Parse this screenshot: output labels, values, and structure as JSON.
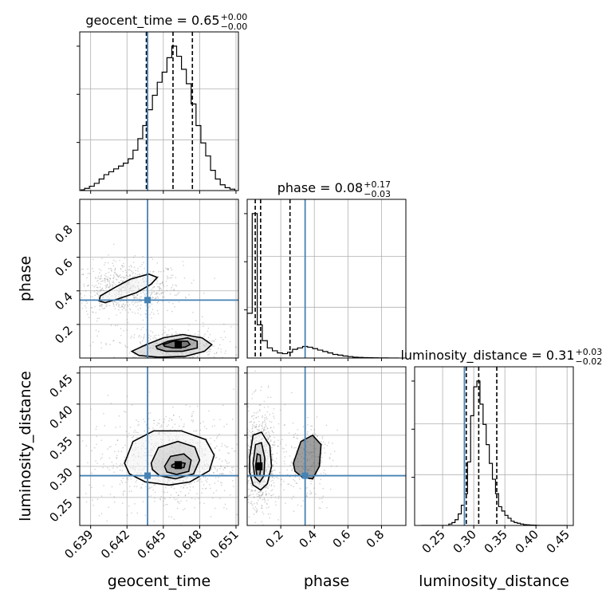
{
  "chart_data": {
    "type": "corner",
    "parameters": [
      "geocent_time",
      "phase",
      "luminosity_distance"
    ],
    "ranges": {
      "geocent_time": [
        0.6381,
        0.6512
      ],
      "phase": [
        0.0,
        0.945
      ],
      "luminosity_distance": [
        0.205,
        0.46
      ]
    },
    "ticks": {
      "geocent_time": [
        "0.639",
        "0.642",
        "0.645",
        "0.648",
        "0.651"
      ],
      "phase": [
        "0.2",
        "0.4",
        "0.6",
        "0.8"
      ],
      "luminosity_distance": [
        "0.25",
        "0.30",
        "0.35",
        "0.40",
        "0.45"
      ]
    },
    "ticks_left": {
      "phase": [
        "0.2",
        "0.4",
        "0.6",
        "0.8"
      ],
      "luminosity_distance": [
        "0.25",
        "0.30",
        "0.35",
        "0.40",
        "0.45"
      ]
    },
    "truths": {
      "geocent_time": 0.6437,
      "phase": 0.345,
      "luminosity_distance": 0.285
    },
    "titles": [
      {
        "name": "geocent_time",
        "value": "0.65",
        "plus": "+0.00",
        "minus": "−0.00"
      },
      {
        "name": "phase",
        "value": "0.08",
        "plus": "+0.17",
        "minus": "−0.03"
      },
      {
        "name": "luminosity_distance",
        "value": "0.31",
        "plus": "+0.03",
        "minus": "−0.02"
      }
    ],
    "quantiles": {
      "geocent_time": [
        0.6436,
        0.6458,
        0.6474
      ],
      "phase": [
        0.048,
        0.08,
        0.255
      ],
      "luminosity_distance": [
        0.288,
        0.308,
        0.337
      ]
    },
    "hist_1d": {
      "geocent_time": {
        "edges": [
          0.6382,
          0.6385,
          0.6389,
          0.6393,
          0.6397,
          0.6401,
          0.6405,
          0.6409,
          0.6413,
          0.6417,
          0.6421,
          0.6425,
          0.6429,
          0.6433,
          0.6437,
          0.6441,
          0.6445,
          0.6449,
          0.6453,
          0.6457,
          0.6461,
          0.6465,
          0.6469,
          0.6473,
          0.6477,
          0.6481,
          0.6485,
          0.6489,
          0.6493,
          0.6497,
          0.6501,
          0.6505,
          0.6509
        ],
        "counts": [
          0.5,
          1.5,
          3,
          5,
          8,
          11,
          13,
          15,
          17,
          19,
          22,
          28,
          36,
          45,
          56,
          66,
          75,
          82,
          92,
          100,
          93,
          84,
          74,
          60,
          45,
          33,
          24,
          14,
          8,
          4,
          2,
          1
        ]
      },
      "phase": {
        "edges": [
          0.0,
          0.03,
          0.06,
          0.09,
          0.12,
          0.15,
          0.18,
          0.21,
          0.24,
          0.27,
          0.3,
          0.33,
          0.36,
          0.39,
          0.42,
          0.45,
          0.48,
          0.51,
          0.54,
          0.57,
          0.6,
          0.63,
          0.66,
          0.69,
          0.72,
          0.75,
          0.78,
          0.81,
          0.84,
          0.87,
          0.9
        ],
        "counts": [
          31,
          100,
          23,
          12,
          7,
          5,
          3.5,
          3,
          4,
          6,
          7,
          8,
          7.5,
          6.5,
          5.5,
          4.5,
          3.5,
          2.5,
          2,
          1.4,
          1,
          0.6,
          0.4,
          0.3,
          0.2,
          0.15,
          0.1,
          0.06,
          0.03,
          0.01
        ]
      },
      "luminosity_distance": {
        "edges": [
          0.215,
          0.22,
          0.225,
          0.23,
          0.235,
          0.24,
          0.245,
          0.25,
          0.255,
          0.26,
          0.265,
          0.27,
          0.275,
          0.28,
          0.285,
          0.29,
          0.295,
          0.3,
          0.305,
          0.31,
          0.315,
          0.32,
          0.325,
          0.33,
          0.335,
          0.34,
          0.345,
          0.35,
          0.355,
          0.36,
          0.365,
          0.37,
          0.375,
          0.38,
          0.385,
          0.39,
          0.395,
          0.4,
          0.405,
          0.41,
          0.415,
          0.42,
          0.425,
          0.43,
          0.435,
          0.44,
          0.445,
          0.45
        ],
        "counts": [
          0,
          0,
          0,
          0,
          0,
          0,
          0,
          0,
          0,
          1,
          2,
          4,
          8,
          14,
          22,
          44,
          76,
          96,
          100,
          84,
          70,
          56,
          43,
          32,
          22,
          13,
          10,
          7,
          5,
          3,
          2,
          1.5,
          1,
          0.6,
          0.4,
          0.3,
          0.2,
          0.1,
          0,
          0,
          0,
          0,
          0,
          0,
          0,
          0,
          0
        ]
      }
    },
    "contours_2d": [
      {
        "x": "geocent_time",
        "y": "phase",
        "levels": [
          [
            [
              0.6398,
              0.37
            ],
            [
              0.641,
              0.42
            ],
            [
              0.6423,
              0.47
            ],
            [
              0.6438,
              0.5
            ],
            [
              0.6445,
              0.48
            ],
            [
              0.644,
              0.44
            ],
            [
              0.6428,
              0.39
            ],
            [
              0.6412,
              0.35
            ],
            [
              0.6402,
              0.33
            ],
            [
              0.6397,
              0.34
            ]
          ],
          [
            [
              0.6424,
              0.04
            ],
            [
              0.6436,
              0.08
            ],
            [
              0.645,
              0.12
            ],
            [
              0.6466,
              0.14
            ],
            [
              0.6482,
              0.12
            ],
            [
              0.649,
              0.08
            ],
            [
              0.6484,
              0.04
            ],
            [
              0.6468,
              0.01
            ],
            [
              0.6446,
              0.005
            ],
            [
              0.643,
              0.015
            ]
          ],
          [
            [
              0.6444,
              0.07
            ],
            [
              0.6454,
              0.1
            ],
            [
              0.647,
              0.12
            ],
            [
              0.6478,
              0.1
            ],
            [
              0.6478,
              0.06
            ],
            [
              0.6466,
              0.04
            ],
            [
              0.6452,
              0.04
            ],
            [
              0.6445,
              0.055
            ]
          ],
          [
            [
              0.645,
              0.08
            ],
            [
              0.6458,
              0.1
            ],
            [
              0.647,
              0.1
            ],
            [
              0.6472,
              0.08
            ],
            [
              0.6468,
              0.065
            ],
            [
              0.6458,
              0.06
            ],
            [
              0.6451,
              0.07
            ]
          ]
        ],
        "peak": [
          0.6462,
          0.08
        ]
      },
      {
        "x": "geocent_time",
        "y": "luminosity_distance",
        "levels": [
          [
            [
              0.6418,
              0.305
            ],
            [
              0.6425,
              0.34
            ],
            [
              0.6442,
              0.357
            ],
            [
              0.6465,
              0.357
            ],
            [
              0.6485,
              0.343
            ],
            [
              0.6492,
              0.318
            ],
            [
              0.6488,
              0.293
            ],
            [
              0.6472,
              0.275
            ],
            [
              0.6455,
              0.27
            ],
            [
              0.6435,
              0.275
            ],
            [
              0.6422,
              0.288
            ]
          ],
          [
            [
              0.644,
              0.305
            ],
            [
              0.6446,
              0.33
            ],
            [
              0.6462,
              0.34
            ],
            [
              0.6476,
              0.331
            ],
            [
              0.648,
              0.31
            ],
            [
              0.6475,
              0.288
            ],
            [
              0.646,
              0.28
            ],
            [
              0.6447,
              0.285
            ],
            [
              0.6441,
              0.295
            ]
          ],
          [
            [
              0.6451,
              0.3
            ],
            [
              0.6456,
              0.316
            ],
            [
              0.6467,
              0.32
            ],
            [
              0.6473,
              0.31
            ],
            [
              0.6471,
              0.292
            ],
            [
              0.6461,
              0.287
            ],
            [
              0.6453,
              0.291
            ]
          ],
          [
            [
              0.6457,
              0.302
            ],
            [
              0.6462,
              0.307
            ],
            [
              0.6468,
              0.305
            ],
            [
              0.6467,
              0.298
            ],
            [
              0.6461,
              0.297
            ],
            [
              0.6457,
              0.299
            ]
          ]
        ],
        "peak": [
          0.6462,
          0.302
        ]
      },
      {
        "x": "phase",
        "y": "luminosity_distance",
        "levels": [
          [
            [
              0.015,
              0.315
            ],
            [
              0.035,
              0.35
            ],
            [
              0.085,
              0.355
            ],
            [
              0.135,
              0.333
            ],
            [
              0.145,
              0.3
            ],
            [
              0.12,
              0.272
            ],
            [
              0.08,
              0.262
            ],
            [
              0.035,
              0.27
            ],
            [
              0.015,
              0.29
            ]
          ],
          [
            [
              0.035,
              0.305
            ],
            [
              0.05,
              0.335
            ],
            [
              0.085,
              0.338
            ],
            [
              0.105,
              0.313
            ],
            [
              0.1,
              0.285
            ],
            [
              0.075,
              0.275
            ],
            [
              0.045,
              0.283
            ]
          ],
          [
            [
              0.05,
              0.3
            ],
            [
              0.06,
              0.32
            ],
            [
              0.078,
              0.318
            ],
            [
              0.082,
              0.3
            ],
            [
              0.075,
              0.285
            ],
            [
              0.058,
              0.285
            ]
          ],
          [
            [
              0.275,
              0.305
            ],
            [
              0.32,
              0.34
            ],
            [
              0.39,
              0.35
            ],
            [
              0.44,
              0.335
            ],
            [
              0.43,
              0.3
            ],
            [
              0.39,
              0.28
            ],
            [
              0.33,
              0.282
            ],
            [
              0.285,
              0.292
            ]
          ]
        ],
        "peak": [
          0.068,
          0.3
        ]
      }
    ],
    "colors": {
      "truth": "#4682b4",
      "line": "#000000",
      "grid": "#b0b0b0",
      "scatter": "#7a7a7a"
    }
  }
}
